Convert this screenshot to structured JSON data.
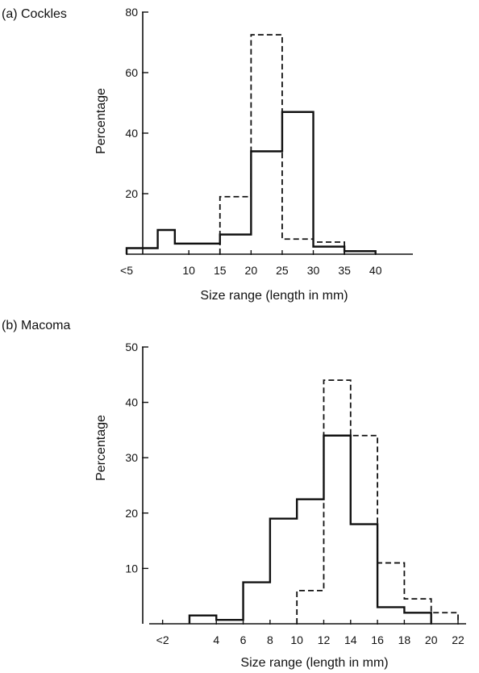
{
  "chart_data": [
    {
      "type": "histogram",
      "panel_label": "(a) Cockles",
      "xlabel": "Size range (length in mm)",
      "ylabel": "Percentage",
      "ylim": [
        0,
        80
      ],
      "y_ticks": [
        20,
        40,
        60,
        80
      ],
      "x_ticks": [
        {
          "label": "<5",
          "pos": 0
        },
        {
          "label": "10",
          "pos": 2
        },
        {
          "label": "15",
          "pos": 3
        },
        {
          "label": "20",
          "pos": 4
        },
        {
          "label": "25",
          "pos": 5
        },
        {
          "label": "30",
          "pos": 6
        },
        {
          "label": "35",
          "pos": 7
        },
        {
          "label": "40",
          "pos": 8
        }
      ],
      "x_range": [
        0,
        9.2
      ],
      "series": [
        {
          "style": "solid",
          "bins": [
            {
              "x0": 0,
              "x1": 1,
              "value": 2
            },
            {
              "x0": 1,
              "x1": 1.55,
              "value": 8
            },
            {
              "x0": 1.55,
              "x1": 3,
              "value": 3.5
            },
            {
              "x0": 3,
              "x1": 4,
              "value": 6.5
            },
            {
              "x0": 4,
              "x1": 5,
              "value": 34
            },
            {
              "x0": 5,
              "x1": 6,
              "value": 47
            },
            {
              "x0": 6,
              "x1": 7,
              "value": 2.5
            },
            {
              "x0": 7,
              "x1": 8,
              "value": 1
            }
          ]
        },
        {
          "style": "dashed",
          "bins": [
            {
              "x0": 3,
              "x1": 4,
              "value": 19
            },
            {
              "x0": 4,
              "x1": 5,
              "value": 72.5
            },
            {
              "x0": 5,
              "x1": 6,
              "value": 5
            },
            {
              "x0": 6,
              "x1": 7,
              "value": 4
            }
          ]
        }
      ]
    },
    {
      "type": "histogram",
      "panel_label": "(b) Macoma",
      "xlabel": "Size range (length in mm)",
      "ylabel": "Percentage",
      "ylim": [
        0,
        50
      ],
      "y_ticks": [
        10,
        20,
        30,
        40,
        50
      ],
      "x_ticks": [
        {
          "label": "<2",
          "pos": 0
        },
        {
          "label": "4",
          "pos": 4
        },
        {
          "label": "6",
          "pos": 6
        },
        {
          "label": "8",
          "pos": 8
        },
        {
          "label": "10",
          "pos": 10
        },
        {
          "label": "12",
          "pos": 12
        },
        {
          "label": "14",
          "pos": 14
        },
        {
          "label": "16",
          "pos": 16
        },
        {
          "label": "18",
          "pos": 18
        },
        {
          "label": "20",
          "pos": 20
        },
        {
          "label": "22",
          "pos": 22
        }
      ],
      "x_range": [
        -1,
        22.6
      ],
      "series": [
        {
          "style": "solid",
          "bins": [
            {
              "x0": 2,
              "x1": 4,
              "value": 1.5
            },
            {
              "x0": 4,
              "x1": 6,
              "value": 0.7
            },
            {
              "x0": 6,
              "x1": 8,
              "value": 7.5
            },
            {
              "x0": 8,
              "x1": 10,
              "value": 19
            },
            {
              "x0": 10,
              "x1": 12,
              "value": 22.5
            },
            {
              "x0": 12,
              "x1": 14,
              "value": 34
            },
            {
              "x0": 14,
              "x1": 16,
              "value": 18
            },
            {
              "x0": 16,
              "x1": 18,
              "value": 3
            },
            {
              "x0": 18,
              "x1": 20,
              "value": 2
            }
          ]
        },
        {
          "style": "dashed",
          "bins": [
            {
              "x0": 10,
              "x1": 12,
              "value": 6
            },
            {
              "x0": 12,
              "x1": 14,
              "value": 44
            },
            {
              "x0": 14,
              "x1": 16,
              "value": 34
            },
            {
              "x0": 16,
              "x1": 18,
              "value": 11
            },
            {
              "x0": 18,
              "x1": 20,
              "value": 4.5
            },
            {
              "x0": 20,
              "x1": 22,
              "value": 2
            }
          ]
        }
      ]
    }
  ]
}
